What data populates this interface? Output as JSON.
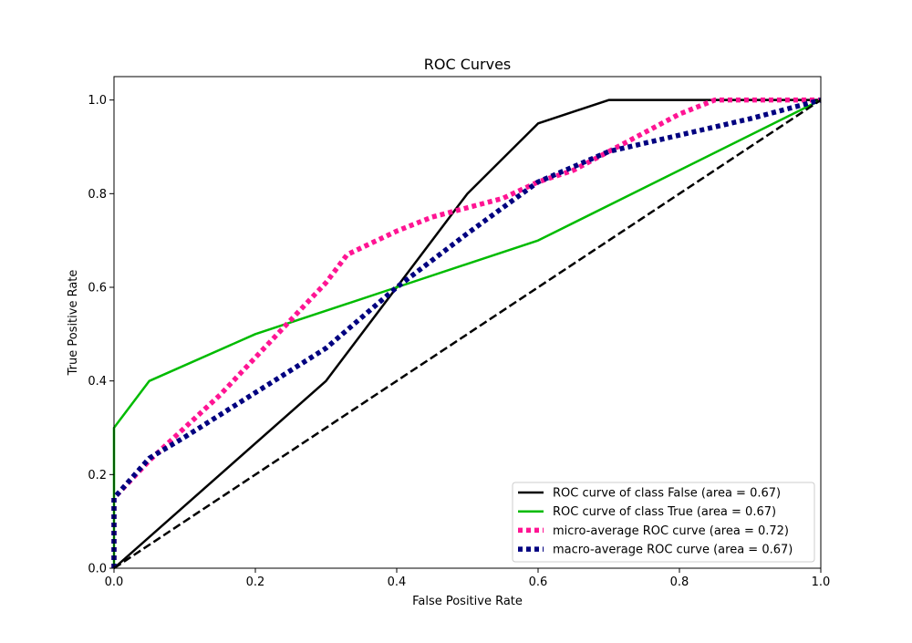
{
  "chart_data": {
    "type": "line",
    "title": "ROC Curves",
    "xlabel": "False Positive Rate",
    "ylabel": "True Positive Rate",
    "xlim": [
      0,
      1
    ],
    "ylim": [
      0,
      1.05
    ],
    "x_ticks": [
      0.0,
      0.2,
      0.4,
      0.6,
      0.8,
      1.0
    ],
    "y_ticks": [
      0.0,
      0.2,
      0.4,
      0.6,
      0.8,
      1.0
    ],
    "x_tick_labels": [
      "0.0",
      "0.2",
      "0.4",
      "0.6",
      "0.8",
      "1.0"
    ],
    "y_tick_labels": [
      "0.0",
      "0.2",
      "0.4",
      "0.6",
      "0.8",
      "1.0"
    ],
    "grid": false,
    "legend_position": "lower right",
    "series": [
      {
        "name": "ROC curve of class False (area = 0.67)",
        "color": "#000000",
        "style": "solid",
        "x": [
          0.0,
          0.3,
          0.5,
          0.6,
          0.7,
          1.0
        ],
        "y": [
          0.0,
          0.4,
          0.8,
          0.95,
          1.0,
          1.0
        ]
      },
      {
        "name": "ROC curve of class True (area = 0.67)",
        "color": "#00bb00",
        "style": "solid",
        "x": [
          0.0,
          0.0,
          0.05,
          0.2,
          0.4,
          0.6,
          1.0
        ],
        "y": [
          0.0,
          0.3,
          0.4,
          0.5,
          0.6,
          0.7,
          1.0
        ]
      },
      {
        "name": "micro-average ROC curve (area = 0.72)",
        "color": "#ff1493",
        "style": "dotted",
        "x": [
          0.0,
          0.0,
          0.05,
          0.1,
          0.15,
          0.2,
          0.25,
          0.3,
          0.33,
          0.4,
          0.45,
          0.5,
          0.55,
          0.6,
          0.65,
          0.7,
          0.75,
          0.8,
          0.85,
          0.9,
          0.95,
          1.0
        ],
        "y": [
          0.0,
          0.15,
          0.23,
          0.3,
          0.37,
          0.45,
          0.53,
          0.61,
          0.67,
          0.72,
          0.75,
          0.77,
          0.79,
          0.825,
          0.85,
          0.89,
          0.93,
          0.97,
          1.0,
          1.0,
          1.0,
          1.0
        ]
      },
      {
        "name": "macro-average ROC curve (area = 0.67)",
        "color": "#000080",
        "style": "dotted",
        "x": [
          0.0,
          0.0,
          0.05,
          0.1,
          0.2,
          0.3,
          0.4,
          0.5,
          0.6,
          0.7,
          0.8,
          0.9,
          1.0
        ],
        "y": [
          0.0,
          0.15,
          0.235,
          0.28,
          0.375,
          0.47,
          0.6,
          0.715,
          0.825,
          0.89,
          0.925,
          0.96,
          1.0
        ]
      }
    ],
    "reference_line": {
      "color": "#000000",
      "style": "dashed",
      "x": [
        0.0,
        1.0
      ],
      "y": [
        0.0,
        1.0
      ]
    }
  }
}
